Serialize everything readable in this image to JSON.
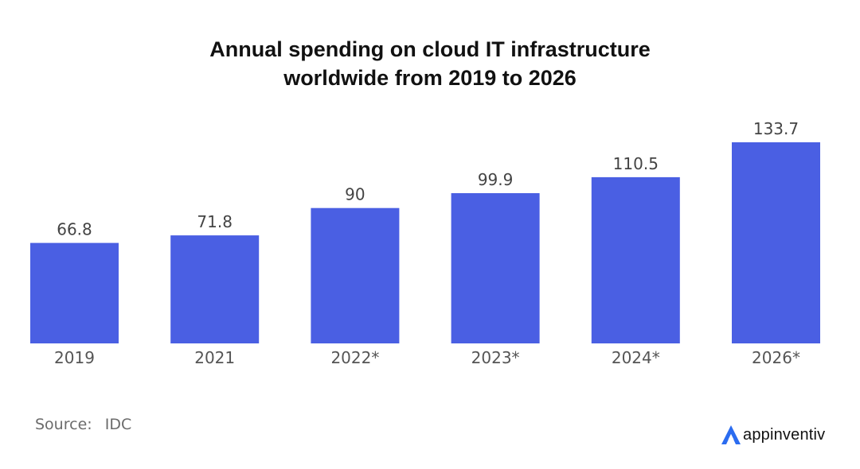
{
  "title_line1": "Annual spending on cloud IT infrastructure",
  "title_line2": "worldwide from 2019 to 2026",
  "source_key": "Source:",
  "source_value": "IDC",
  "brand_name": "appinventiv",
  "brand_icon": "appinventiv-logo-icon",
  "colors": {
    "bar": "#4A5FE3",
    "brand": "#2B6CF0"
  },
  "chart_data": {
    "type": "bar",
    "title": "Annual spending on cloud IT infrastructure worldwide from 2019 to 2026",
    "categories": [
      "2019",
      "2021",
      "2022*",
      "2023*",
      "2024*",
      "2026*"
    ],
    "values": [
      66.8,
      71.8,
      90,
      99.9,
      110.5,
      133.7
    ],
    "value_labels": [
      "66.8",
      "71.8",
      "90",
      "99.9",
      "110.5",
      "133.7"
    ],
    "xlabel": "",
    "ylabel": "",
    "ylim": [
      0,
      133.7
    ],
    "grid": false,
    "legend": "none"
  }
}
